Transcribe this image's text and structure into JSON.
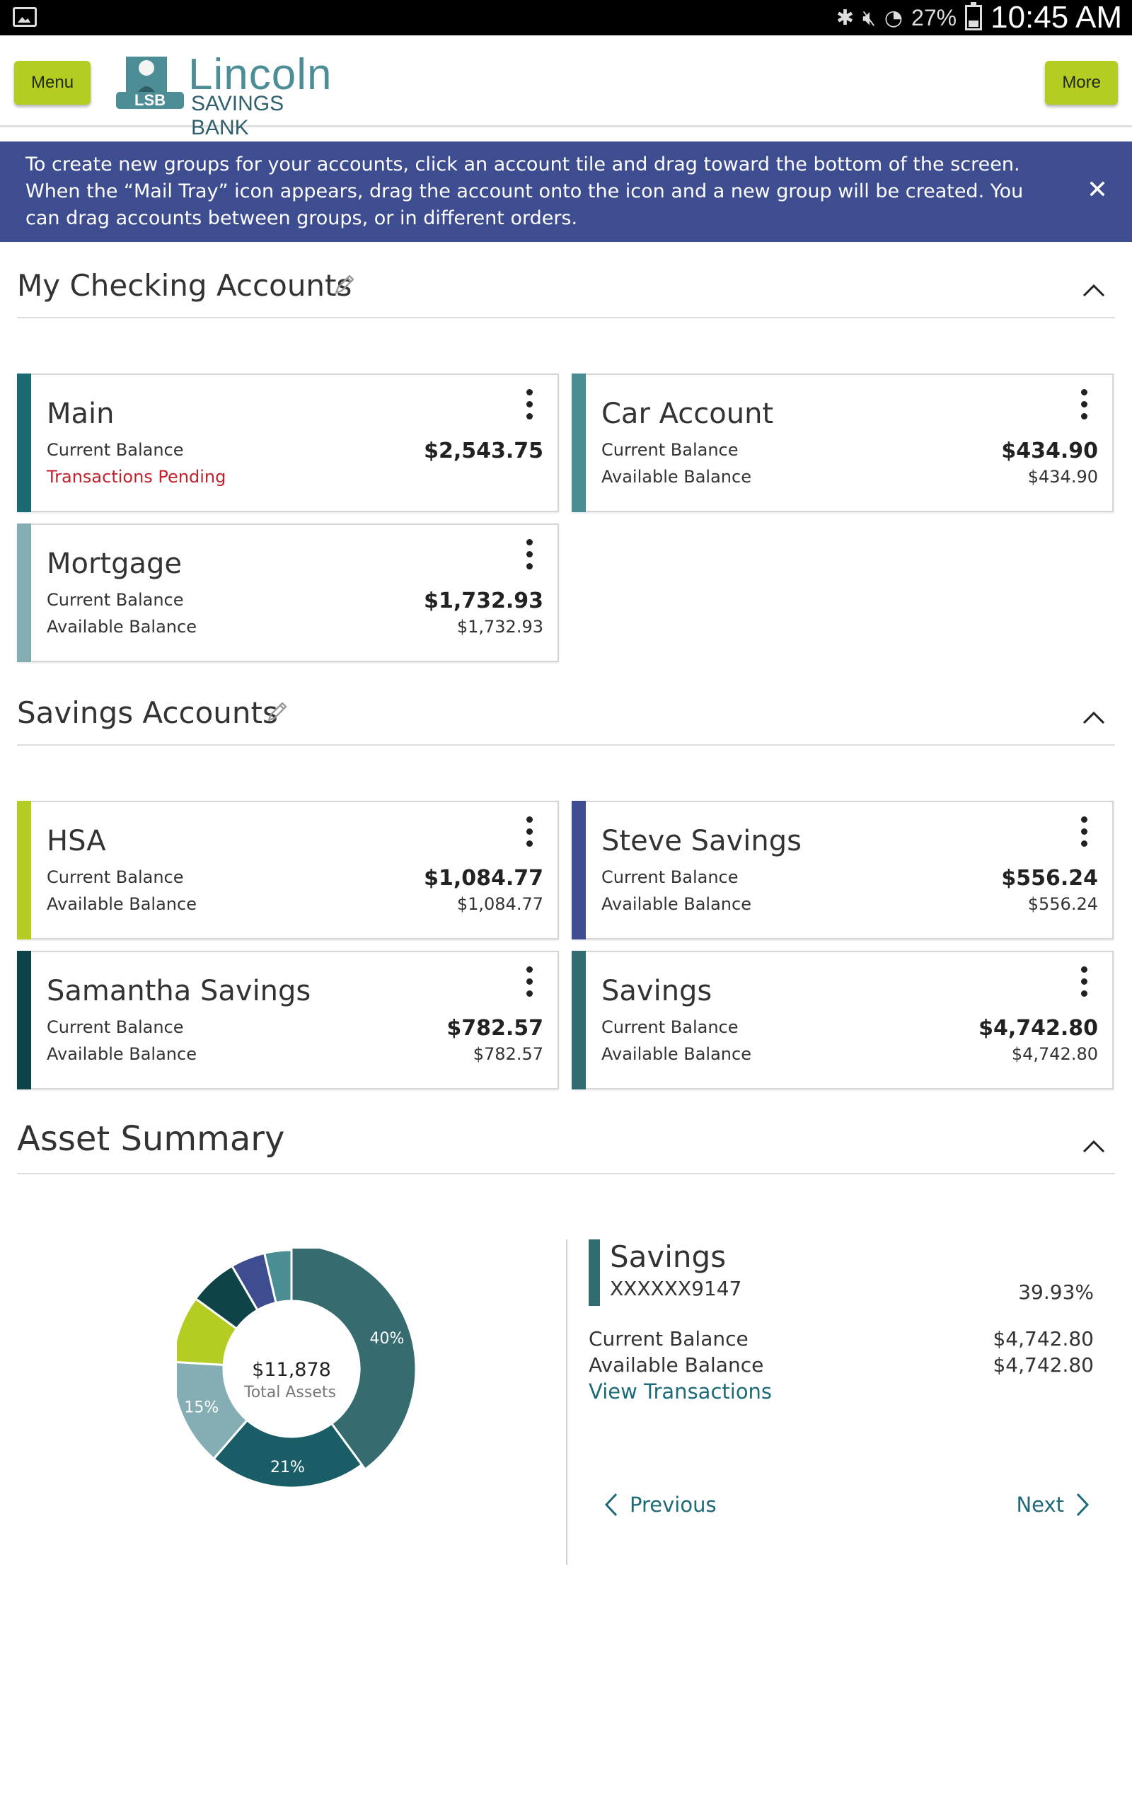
{
  "status_bar": {
    "battery": "27%",
    "time": "10:45 AM"
  },
  "header": {
    "menu_label": "Menu",
    "more_label": "More",
    "logo_name": "Lincoln",
    "logo_sub": "SAVINGS BANK",
    "logo_seal_text": "LSB",
    "brand_color": "#b5cc22"
  },
  "banner": {
    "text": "To create new groups for your accounts, click an account tile and drag toward the bottom of the screen. When the “Mail Tray” icon appears, drag the account onto the icon and a new group will be created. You can drag accounts between groups, or in different orders.",
    "background": "#3e4d90"
  },
  "checking": {
    "title": "My Checking Accounts",
    "tiles": [
      {
        "name": "Main",
        "label1": "Current Balance",
        "value1": "$2,543.75",
        "label2": "Transactions Pending",
        "value2": "",
        "color": "#1a6a72"
      },
      {
        "name": "Car Account",
        "label1": "Current Balance",
        "value1": "$434.90",
        "label2": "Available Balance",
        "value2": "$434.90",
        "color": "#4a8d93"
      },
      {
        "name": "Mortgage",
        "label1": "Current Balance",
        "value1": "$1,732.93",
        "label2": "Available Balance",
        "value2": "$1,732.93",
        "color": "#84aeb3"
      }
    ]
  },
  "savings": {
    "title": "Savings Accounts",
    "tiles": [
      {
        "name": "HSA",
        "label1": "Current Balance",
        "value1": "$1,084.77",
        "label2": "Available Balance",
        "value2": "$1,084.77",
        "color": "#b5cc22"
      },
      {
        "name": "Steve Savings",
        "label1": "Current Balance",
        "value1": "$556.24",
        "label2": "Available Balance",
        "value2": "$556.24",
        "color": "#3e4d90"
      },
      {
        "name": "Samantha Savings",
        "label1": "Current Balance",
        "value1": "$782.57",
        "label2": "Available Balance",
        "value2": "$782.57",
        "color": "#0e4448"
      },
      {
        "name": "Savings",
        "label1": "Current Balance",
        "value1": "$4,742.80",
        "label2": "Available Balance",
        "value2": "$4,742.80",
        "color": "#2f6b70"
      }
    ]
  },
  "asset_summary": {
    "title": "Asset Summary",
    "total": "$11,878",
    "total_label": "Total Assets",
    "segments": [
      {
        "account": "Savings",
        "value": 4742.8,
        "label": "40%",
        "color": "#366b70"
      },
      {
        "account": "Main",
        "value": 2543.75,
        "label": "21%",
        "color": "#195e66"
      },
      {
        "account": "Mortgage",
        "value": 1732.93,
        "label": "15%",
        "color": "#84aeb3"
      },
      {
        "account": "HSA",
        "value": 1084.77,
        "label": "",
        "color": "#b5cc22"
      },
      {
        "account": "Samantha Savings",
        "value": 782.57,
        "label": "",
        "color": "#0e4448"
      },
      {
        "account": "Steve Savings",
        "value": 556.24,
        "label": "",
        "color": "#3e4d90"
      },
      {
        "account": "Car Account",
        "value": 434.9,
        "label": "",
        "color": "#4a8d93"
      }
    ],
    "selected": {
      "name": "Savings",
      "account_number": "XXXXXX9147",
      "percent": "39.93%",
      "current_label": "Current Balance",
      "current_value": "$4,742.80",
      "available_label": "Available Balance",
      "available_value": "$4,742.80",
      "link": "View Transactions"
    },
    "prev_label": "Previous",
    "next_label": "Next"
  }
}
